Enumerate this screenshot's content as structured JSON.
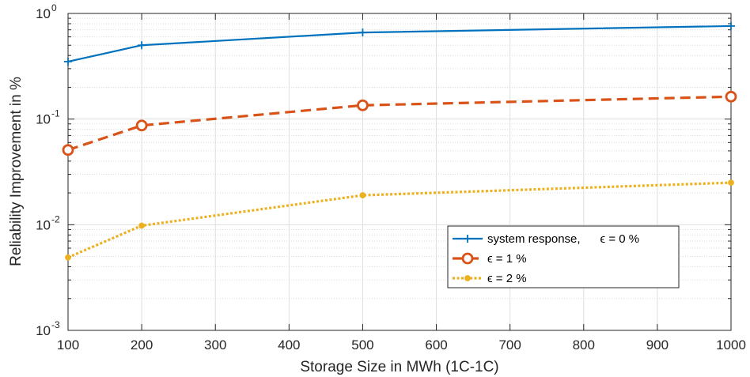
{
  "chart_data": {
    "type": "line",
    "xlabel": "Storage Size in MWh (1C-1C)",
    "ylabel": "Reliability Improvement in %",
    "yscale": "log",
    "xlim": [
      100,
      1000
    ],
    "ylim": [
      0.001,
      1
    ],
    "grid": true,
    "legend_position": "lower-right",
    "x_ticks": [
      "100",
      "200",
      "300",
      "400",
      "500",
      "600",
      "700",
      "800",
      "900",
      "1000"
    ],
    "y_ticks": [
      {
        "base": "10",
        "exp": "-3"
      },
      {
        "base": "10",
        "exp": "-2"
      },
      {
        "base": "10",
        "exp": "-1"
      },
      {
        "base": "10",
        "exp": "0"
      }
    ],
    "series": [
      {
        "name": "system response,      ϵ = 0 %",
        "color": "#0072BD",
        "line_style": "solid",
        "marker": "plus",
        "x": [
          100,
          200,
          500,
          1000
        ],
        "y": [
          0.35,
          0.5,
          0.66,
          0.76
        ]
      },
      {
        "name": "ϵ = 1 %",
        "color": "#D95319",
        "line_style": "dashed",
        "marker": "circle",
        "x": [
          100,
          200,
          500,
          1000
        ],
        "y": [
          0.051,
          0.087,
          0.135,
          0.163
        ]
      },
      {
        "name": "ϵ = 2 %",
        "color": "#EDB120",
        "line_style": "dotted",
        "marker": "dot",
        "x": [
          100,
          200,
          500,
          1000
        ],
        "y": [
          0.0049,
          0.0098,
          0.019,
          0.025
        ]
      }
    ]
  }
}
